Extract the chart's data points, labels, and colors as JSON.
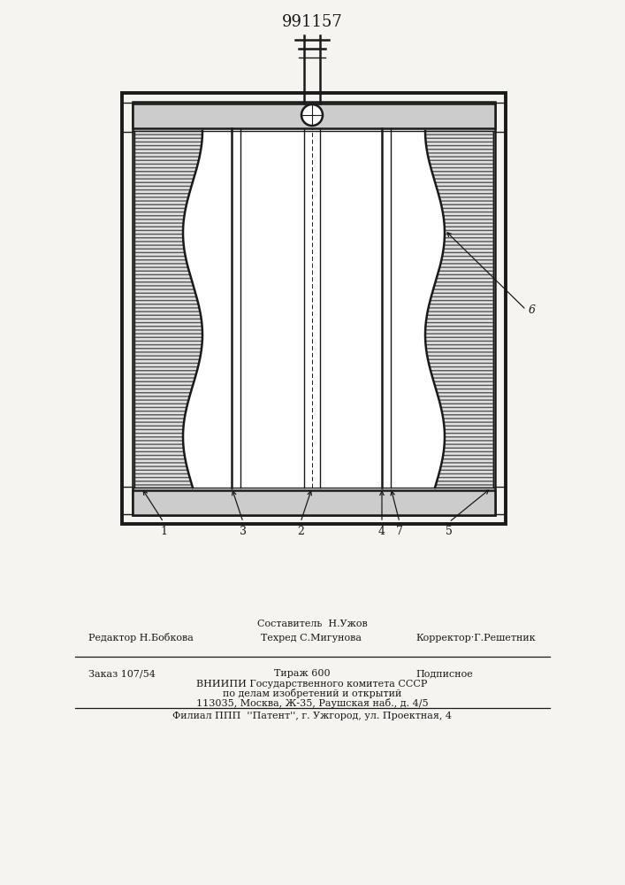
{
  "title": "991157",
  "bg_color": "#f5f4f0",
  "line_color": "#1a1a1a",
  "hatch_color": "#444444",
  "label1": "1",
  "label2": "2",
  "label3": "3",
  "label4": "4",
  "label5": "5",
  "label6": "6",
  "label7": "7",
  "footer_line1_center": "Составитель  Н.Ужов",
  "footer_line1_left": "Редактор Н.Бобкова",
  "footer_line1_center2": "Техред С.Мигунова",
  "footer_line1_right": "Корректор·Г.Решетник",
  "footer_line2_col1": "Заказ 107/54",
  "footer_line2_col2": "Тираж 600",
  "footer_line2_col3": "Подписное",
  "footer_line3": "ВНИИПИ Государственного комитета СССР",
  "footer_line4": "по делам изобретений и открытий",
  "footer_line5": "113035, Москва, Ж-35, Раушская наб., д. 4/5",
  "footer_line6": "Филиал ППП  ''Патент'', г. Ужгород, ул. Проектная, 4"
}
